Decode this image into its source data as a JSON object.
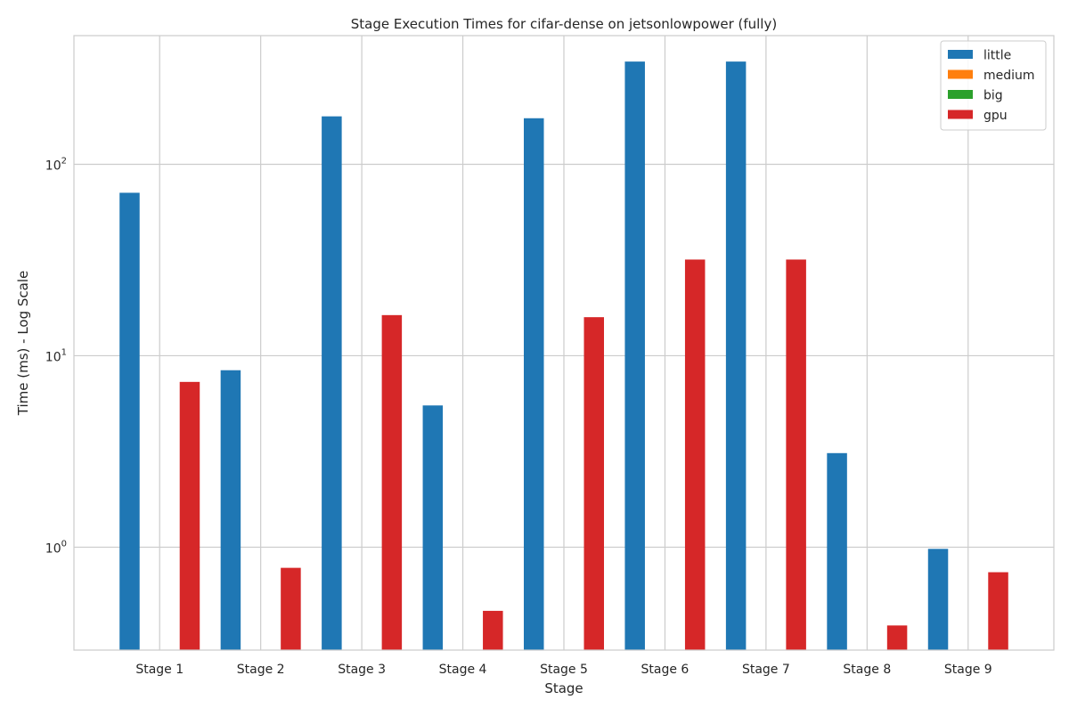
{
  "chart_data": {
    "type": "bar",
    "title": "Stage Execution Times for cifar-dense on jetsonlowpower (fully)",
    "xlabel": "Stage",
    "ylabel": "Time (ms) - Log Scale",
    "yscale": "log",
    "ylim": [
      0.29,
      470
    ],
    "yticks": [
      {
        "value": 1,
        "base": "10",
        "exp": "0"
      },
      {
        "value": 10,
        "base": "10",
        "exp": "1"
      },
      {
        "value": 100,
        "base": "10",
        "exp": "2"
      }
    ],
    "grid": true,
    "legend_position": "top-right",
    "categories": [
      "Stage 1",
      "Stage 2",
      "Stage 3",
      "Stage 4",
      "Stage 5",
      "Stage 6",
      "Stage 7",
      "Stage 8",
      "Stage 9"
    ],
    "series": [
      {
        "name": "little",
        "color": "#1f77b4",
        "values": [
          71,
          8.4,
          178,
          5.5,
          174,
          344,
          344,
          3.1,
          0.98
        ]
      },
      {
        "name": "medium",
        "color": "#ff7f0e",
        "values": [
          null,
          null,
          null,
          null,
          null,
          null,
          null,
          null,
          null
        ]
      },
      {
        "name": "big",
        "color": "#2ca02c",
        "values": [
          null,
          null,
          null,
          null,
          null,
          null,
          null,
          null,
          null
        ]
      },
      {
        "name": "gpu",
        "color": "#d62728",
        "values": [
          7.3,
          0.78,
          16.3,
          0.465,
          15.9,
          31.8,
          31.8,
          0.39,
          0.74
        ]
      }
    ]
  }
}
